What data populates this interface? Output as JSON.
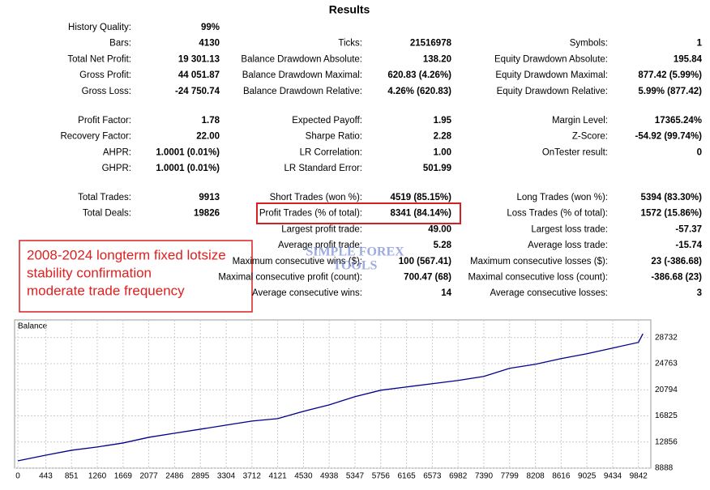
{
  "header": {
    "title": "Results"
  },
  "results": {
    "rows": [
      [
        {
          "label": "History Quality:",
          "value": "99%"
        },
        null,
        null
      ],
      [
        {
          "label": "Bars:",
          "value": "4130"
        },
        {
          "label": "Ticks:",
          "value": "21516978"
        },
        {
          "label": "Symbols:",
          "value": "1"
        }
      ],
      [
        {
          "label": "Total Net Profit:",
          "value": "19 301.13"
        },
        {
          "label": "Balance Drawdown Absolute:",
          "value": "138.20"
        },
        {
          "label": "Equity Drawdown Absolute:",
          "value": "195.84"
        }
      ],
      [
        {
          "label": "Gross Profit:",
          "value": "44 051.87"
        },
        {
          "label": "Balance Drawdown Maximal:",
          "value": "620.83 (4.26%)"
        },
        {
          "label": "Equity Drawdown Maximal:",
          "value": "877.42 (5.99%)"
        }
      ],
      [
        {
          "label": "Gross Loss:",
          "value": "-24 750.74"
        },
        {
          "label": "Balance Drawdown Relative:",
          "value": "4.26% (620.83)"
        },
        {
          "label": "Equity Drawdown Relative:",
          "value": "5.99% (877.42)"
        }
      ],
      [
        {
          "label": "Profit Factor:",
          "value": "1.78"
        },
        {
          "label": "Expected Payoff:",
          "value": "1.95"
        },
        {
          "label": "Margin Level:",
          "value": "17365.24%"
        }
      ],
      [
        {
          "label": "Recovery Factor:",
          "value": "22.00"
        },
        {
          "label": "Sharpe Ratio:",
          "value": "2.28"
        },
        {
          "label": "Z-Score:",
          "value": "-54.92 (99.74%)"
        }
      ],
      [
        {
          "label": "AHPR:",
          "value": "1.0001 (0.01%)"
        },
        {
          "label": "LR Correlation:",
          "value": "1.00"
        },
        {
          "label": "OnTester result:",
          "value": "0"
        }
      ],
      [
        {
          "label": "GHPR:",
          "value": "1.0001 (0.01%)"
        },
        {
          "label": "LR Standard Error:",
          "value": "501.99"
        },
        null
      ],
      [
        {
          "label": "Total Trades:",
          "value": "9913"
        },
        {
          "label": "Short Trades (won %):",
          "value": "4519 (85.15%)"
        },
        {
          "label": "Long Trades (won %):",
          "value": "5394 (83.30%)"
        }
      ],
      [
        {
          "label": "Total Deals:",
          "value": "19826"
        },
        {
          "label": "Profit Trades (% of total):",
          "value": "8341 (84.14%)"
        },
        {
          "label": "Loss Trades (% of total):",
          "value": "1572 (15.86%)"
        }
      ],
      [
        null,
        {
          "label": "Largest profit trade:",
          "value": "49.00"
        },
        {
          "label": "Largest loss trade:",
          "value": "-57.37"
        }
      ],
      [
        null,
        {
          "label": "Average profit trade:",
          "value": "5.28"
        },
        {
          "label": "Average loss trade:",
          "value": "-15.74"
        }
      ],
      [
        null,
        {
          "label": "Maximum consecutive wins ($):",
          "value": "100 (567.41)"
        },
        {
          "label": "Maximum consecutive losses ($):",
          "value": "23 (-386.68)"
        }
      ],
      [
        null,
        {
          "label": "Maximal consecutive profit (count):",
          "value": "700.47 (68)"
        },
        {
          "label": "Maximal consecutive loss (count):",
          "value": "-386.68 (23)"
        }
      ],
      [
        null,
        {
          "label": "Average consecutive wins:",
          "value": "14"
        },
        {
          "label": "Average consecutive losses:",
          "value": "3"
        }
      ]
    ]
  },
  "annotation": {
    "lines": [
      "2008-2024 longterm fixed lotsize",
      "stability confirmation",
      "moderate trade frequency"
    ]
  },
  "watermark": {
    "lines": [
      "SIMPLE FOREX",
      "TOOLS"
    ]
  },
  "chart_data": {
    "type": "line",
    "title": "Balance",
    "x": [
      0,
      443,
      851,
      1260,
      1669,
      2077,
      2486,
      2895,
      3304,
      3712,
      4121,
      4530,
      4938,
      5347,
      5756,
      6165,
      6573,
      6982,
      7390,
      7799,
      8208,
      8616,
      9025,
      9434,
      9842,
      9913
    ],
    "series": [
      {
        "name": "Balance",
        "color": "#00008b",
        "values": [
          10000,
          10860,
          11600,
          12100,
          12710,
          13570,
          14190,
          14800,
          15420,
          16040,
          16410,
          17520,
          18500,
          19740,
          20720,
          21220,
          21710,
          22200,
          22820,
          24050,
          24670,
          25530,
          26270,
          27130,
          27990,
          29301
        ]
      }
    ],
    "xlim": [
      0,
      10000
    ],
    "ylim": [
      8888,
      31400
    ],
    "xticks": [
      0,
      443,
      851,
      1260,
      1669,
      2077,
      2486,
      2895,
      3304,
      3712,
      4121,
      4530,
      4938,
      5347,
      5756,
      6165,
      6573,
      6982,
      7390,
      7799,
      8208,
      8616,
      9025,
      9434,
      9842
    ],
    "yticks": [
      8888,
      12856,
      16825,
      20794,
      24763,
      28732
    ],
    "grid": true
  }
}
